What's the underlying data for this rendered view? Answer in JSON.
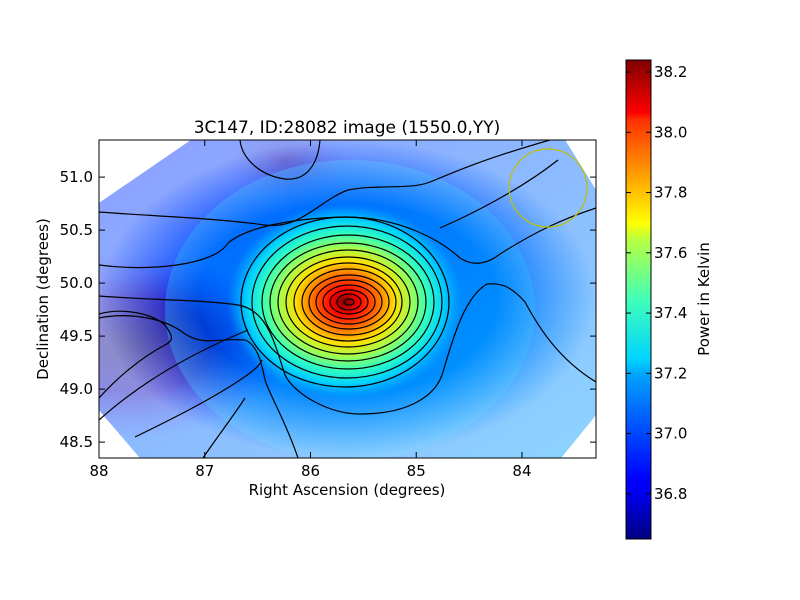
{
  "chart_data": {
    "type": "heatmap",
    "title": "3C147, ID:28082 image (1550.0,YY)",
    "xlabel": "Right Ascension (degrees)",
    "ylabel": "Declination (degrees)",
    "x_range": [
      88,
      83.3
    ],
    "y_range": [
      48.35,
      51.35
    ],
    "x_ticks": [
      "88",
      "87",
      "86",
      "85",
      "84"
    ],
    "x_tick_values": [
      88,
      87,
      86,
      85,
      84
    ],
    "y_ticks": [
      "48.5",
      "49.0",
      "49.5",
      "50.0",
      "50.5",
      "51.0"
    ],
    "y_tick_values": [
      48.5,
      49.0,
      49.5,
      50.0,
      50.5,
      51.0
    ],
    "colorbar": {
      "label": "Power in Kelvin",
      "range": [
        36.65,
        38.24
      ],
      "ticks": [
        "36.8",
        "37.0",
        "37.2",
        "37.4",
        "37.6",
        "37.8",
        "38.0",
        "38.2"
      ],
      "tick_values": [
        36.8,
        37.0,
        37.2,
        37.4,
        37.6,
        37.8,
        38.0,
        38.2
      ],
      "colormap": "jet"
    },
    "peak": {
      "ra": 85.65,
      "dec": 49.82,
      "value": 38.24
    },
    "minimum": {
      "ra": 87.9,
      "dec": 49.4,
      "value": 36.65
    },
    "background_level": 37.02,
    "beam_circle": {
      "ra": 83.78,
      "dec": 50.9,
      "radius_deg": 0.37,
      "color": "#bfbf00"
    },
    "contour_color": "#000000"
  }
}
